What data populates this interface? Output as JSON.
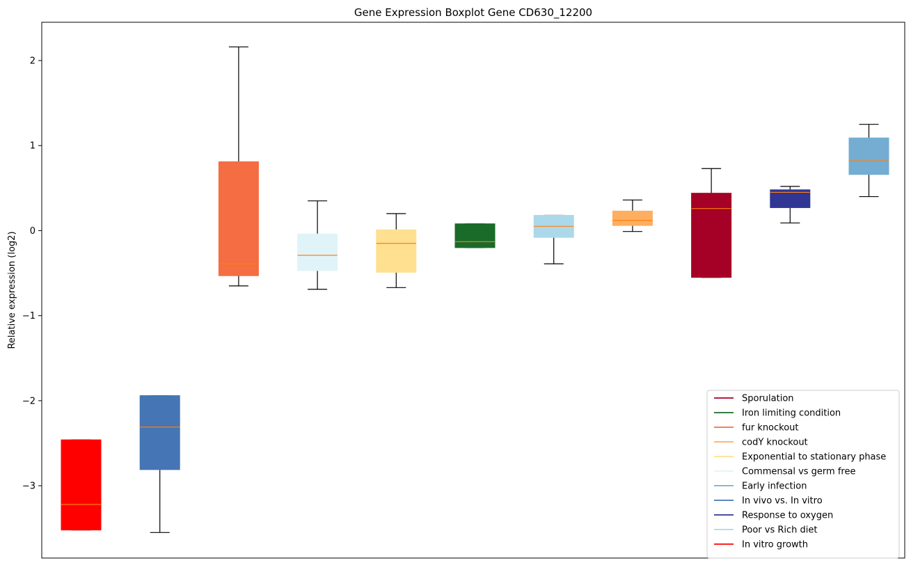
{
  "chart_data": {
    "type": "boxplot",
    "title": "Gene Expression Boxplot Gene CD630_12200",
    "xlabel": "",
    "ylabel": "Relative expression (log2)",
    "ylim": [
      -3.85,
      2.45
    ],
    "yticks": [
      {
        "value": -3,
        "label": "−3"
      },
      {
        "value": -2,
        "label": "−2"
      },
      {
        "value": -1,
        "label": "−1"
      },
      {
        "value": 0,
        "label": "0"
      },
      {
        "value": 1,
        "label": "1"
      },
      {
        "value": 2,
        "label": "2"
      }
    ],
    "grid": false,
    "legend_position": "bottom-right",
    "median_color": "#ff7f0e",
    "boxes": [
      {
        "name": "In vitro growth",
        "color": "#ff0000",
        "whisker_low": -3.52,
        "q1": -3.52,
        "median": -3.22,
        "q3": -2.46,
        "whisker_high": -2.46
      },
      {
        "name": "In vivo vs. In vitro",
        "color": "#4575b4",
        "whisker_low": -3.55,
        "q1": -2.81,
        "median": -2.31,
        "q3": -1.94,
        "whisker_high": -1.94
      },
      {
        "name": "fur knockout",
        "color": "#f46d43",
        "whisker_low": -0.65,
        "q1": -0.53,
        "median": -0.39,
        "q3": 0.81,
        "whisker_high": 2.16
      },
      {
        "name": "Commensal vs germ free",
        "color": "#e0f3f8",
        "whisker_low": -0.69,
        "q1": -0.47,
        "median": -0.29,
        "q3": -0.04,
        "whisker_high": 0.35
      },
      {
        "name": "Exponential to stationary phase",
        "color": "#fee090",
        "whisker_low": -0.67,
        "q1": -0.49,
        "median": -0.15,
        "q3": 0.01,
        "whisker_high": 0.2
      },
      {
        "name": "Iron limiting condition",
        "color": "#1a6b2a",
        "whisker_low": -0.2,
        "q1": -0.2,
        "median": -0.13,
        "q3": 0.08,
        "whisker_high": 0.08
      },
      {
        "name": "Poor vs Rich diet",
        "color": "#abd9e9",
        "whisker_low": -0.39,
        "q1": -0.08,
        "median": 0.05,
        "q3": 0.18,
        "whisker_high": 0.18
      },
      {
        "name": "codY knockout",
        "color": "#fdae61",
        "whisker_low": -0.01,
        "q1": 0.06,
        "median": 0.12,
        "q3": 0.23,
        "whisker_high": 0.36
      },
      {
        "name": "Sporulation",
        "color": "#a50026",
        "whisker_low": -0.55,
        "q1": -0.55,
        "median": 0.26,
        "q3": 0.44,
        "whisker_high": 0.73
      },
      {
        "name": "Response to oxygen",
        "color": "#313695",
        "whisker_low": 0.09,
        "q1": 0.27,
        "median": 0.45,
        "q3": 0.48,
        "whisker_high": 0.52
      },
      {
        "name": "Early infection",
        "color": "#74add1",
        "whisker_low": 0.4,
        "q1": 0.66,
        "median": 0.82,
        "q3": 1.09,
        "whisker_high": 1.25
      }
    ],
    "legend": [
      {
        "label": "Sporulation",
        "color": "#a50026"
      },
      {
        "label": "Iron limiting condition",
        "color": "#1a6b2a"
      },
      {
        "label": "fur knockout",
        "color": "#f46d43"
      },
      {
        "label": "codY knockout",
        "color": "#fdae61"
      },
      {
        "label": "Exponential to stationary phase",
        "color": "#fee090"
      },
      {
        "label": "Commensal vs germ free",
        "color": "#e0f3f8"
      },
      {
        "label": "Early infection",
        "color": "#74add1"
      },
      {
        "label": "In vivo vs. In vitro",
        "color": "#4575b4"
      },
      {
        "label": "Response to oxygen",
        "color": "#313695"
      },
      {
        "label": "Poor vs Rich diet",
        "color": "#abd9e9"
      },
      {
        "label": "In vitro growth",
        "color": "#ff0000"
      }
    ]
  }
}
